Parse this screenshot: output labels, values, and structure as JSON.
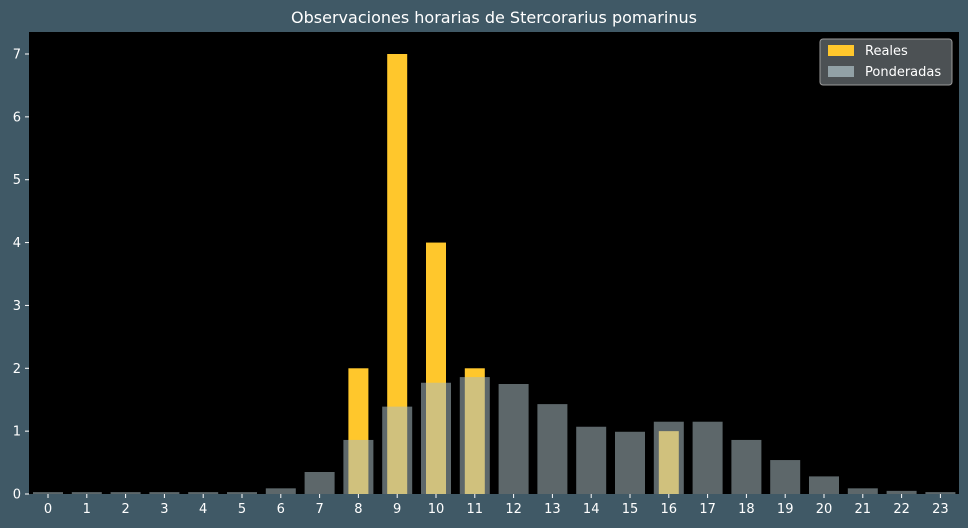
{
  "chart_data": {
    "type": "bar",
    "title": "Observaciones horarias de Stercorarius pomarinus",
    "xlabel": "",
    "ylabel": "",
    "categories": [
      "0",
      "1",
      "2",
      "3",
      "4",
      "5",
      "6",
      "7",
      "8",
      "9",
      "10",
      "11",
      "12",
      "13",
      "14",
      "15",
      "16",
      "17",
      "18",
      "19",
      "20",
      "21",
      "22",
      "23"
    ],
    "series": [
      {
        "name": "Reales",
        "color": "#ffc72c",
        "values": [
          0,
          0,
          0,
          0,
          0,
          0,
          0,
          0,
          2,
          7,
          4,
          2,
          0,
          0,
          0,
          0,
          1,
          0,
          0,
          0,
          0,
          0,
          0,
          0
        ]
      },
      {
        "name": "Ponderadas",
        "color": "#a9bcc1",
        "opacity": 0.55,
        "values": [
          0.03,
          0.03,
          0.03,
          0.03,
          0.03,
          0.03,
          0.09,
          0.35,
          0.86,
          1.39,
          1.77,
          1.86,
          1.75,
          1.43,
          1.07,
          0.99,
          1.15,
          1.15,
          0.86,
          0.54,
          0.28,
          0.09,
          0.05,
          0.03
        ]
      }
    ],
    "yticks": [
      0,
      1,
      2,
      3,
      4,
      5,
      6,
      7
    ],
    "ylim": [
      0,
      7.35
    ],
    "legend_position": "top-right",
    "grid": false,
    "colors": {
      "figure_background": "#405966",
      "plot_background": "#000000",
      "text": "#ffffff"
    }
  }
}
